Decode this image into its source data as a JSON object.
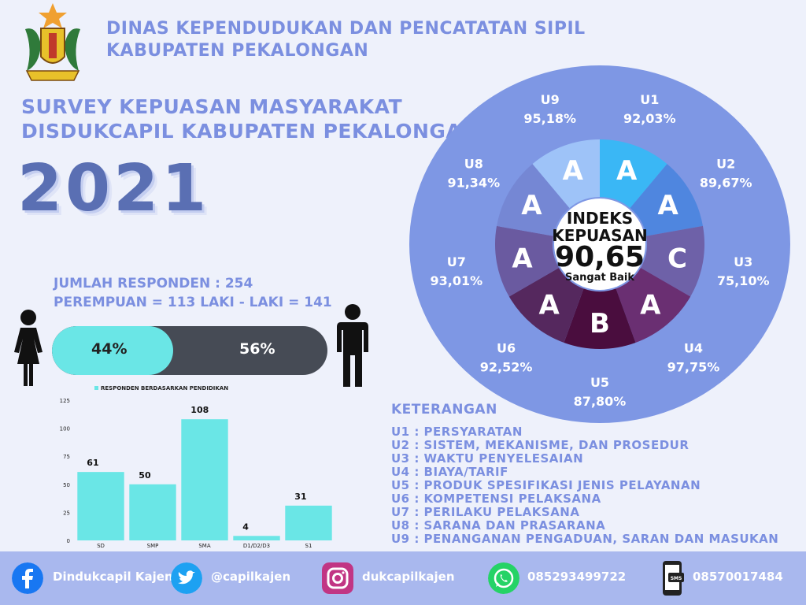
{
  "header": {
    "line1": "DINAS KEPENDUDUKAN DAN PENCATATAN SIPIL",
    "line2": "KABUPATEN PEKALONGAN"
  },
  "title": {
    "line1": "SURVEY KEPUASAN MASYARAKAT",
    "line2": "DISDUKCAPIL KABUPATEN PEKALONGAN",
    "year": "2021"
  },
  "respondents": {
    "total_label": "JUMLAH RESPONDEN :  254",
    "gender_label": "PEREMPUAN = 113   LAKI - LAKI = 141",
    "female_pct": "44%",
    "male_pct": "56%",
    "female_fraction": 0.44
  },
  "chart_data": {
    "type": "bar",
    "title": "",
    "legend": "RESPONDEN BERDASARKAN PENDIDIKAN",
    "categories": [
      "SD",
      "SMP",
      "SMA",
      "D1/D2/D3",
      "S1"
    ],
    "values": [
      61,
      50,
      108,
      4,
      31
    ],
    "yticks": [
      0,
      25,
      50,
      75,
      100,
      125
    ],
    "ylim": [
      0,
      125
    ],
    "color": "#6ae6e6"
  },
  "index": {
    "title_line1": "INDEKS",
    "title_line2": "KEPUASAN",
    "value": "90,65",
    "rating": "Sangat Baik"
  },
  "units": [
    {
      "code": "U1",
      "pct": "92,03%",
      "grade": "A",
      "color": "#3ab7f5"
    },
    {
      "code": "U2",
      "pct": "89,67%",
      "grade": "A",
      "color": "#4f86df"
    },
    {
      "code": "U3",
      "pct": "75,10%",
      "grade": "C",
      "color": "#6e61a8"
    },
    {
      "code": "U4",
      "pct": "97,75%",
      "grade": "A",
      "color": "#6a2f72"
    },
    {
      "code": "U5",
      "pct": "87,80%",
      "grade": "B",
      "color": "#4a0d3e"
    },
    {
      "code": "U6",
      "pct": "92,52%",
      "grade": "A",
      "color": "#55285e"
    },
    {
      "code": "U7",
      "pct": "93,01%",
      "grade": "A",
      "color": "#6a5aa0"
    },
    {
      "code": "U8",
      "pct": "91,34%",
      "grade": "A",
      "color": "#7587d4"
    },
    {
      "code": "U9",
      "pct": "95,18%",
      "grade": "A",
      "color": "#9ec3f8"
    }
  ],
  "keterangan": {
    "title": "KETERANGAN",
    "items": [
      "U1 : PERSYARATAN",
      "U2 : SISTEM,  MEKANISME, DAN PROSEDUR",
      "U3 :  WAKTU PENYELESAIAN",
      "U4 : BIAYA/TARIF",
      "U5 : PRODUK SPESIFIKASI JENIS PELAYANAN",
      "U6 : KOMPETENSI PELAKSANA",
      "U7 : PERILAKU PELAKSANA",
      "U8 : SARANA DAN PRASARANA",
      "U9 : PENANGANAN PENGADUAN, SARAN DAN MASUKAN"
    ]
  },
  "footer": {
    "facebook": "Dindukcapil Kajen",
    "twitter": "@capilkajen",
    "instagram": "dukcapilkajen",
    "whatsapp": "085293499722",
    "sms": "08570017484",
    "sms_icon_text": "SMS"
  }
}
